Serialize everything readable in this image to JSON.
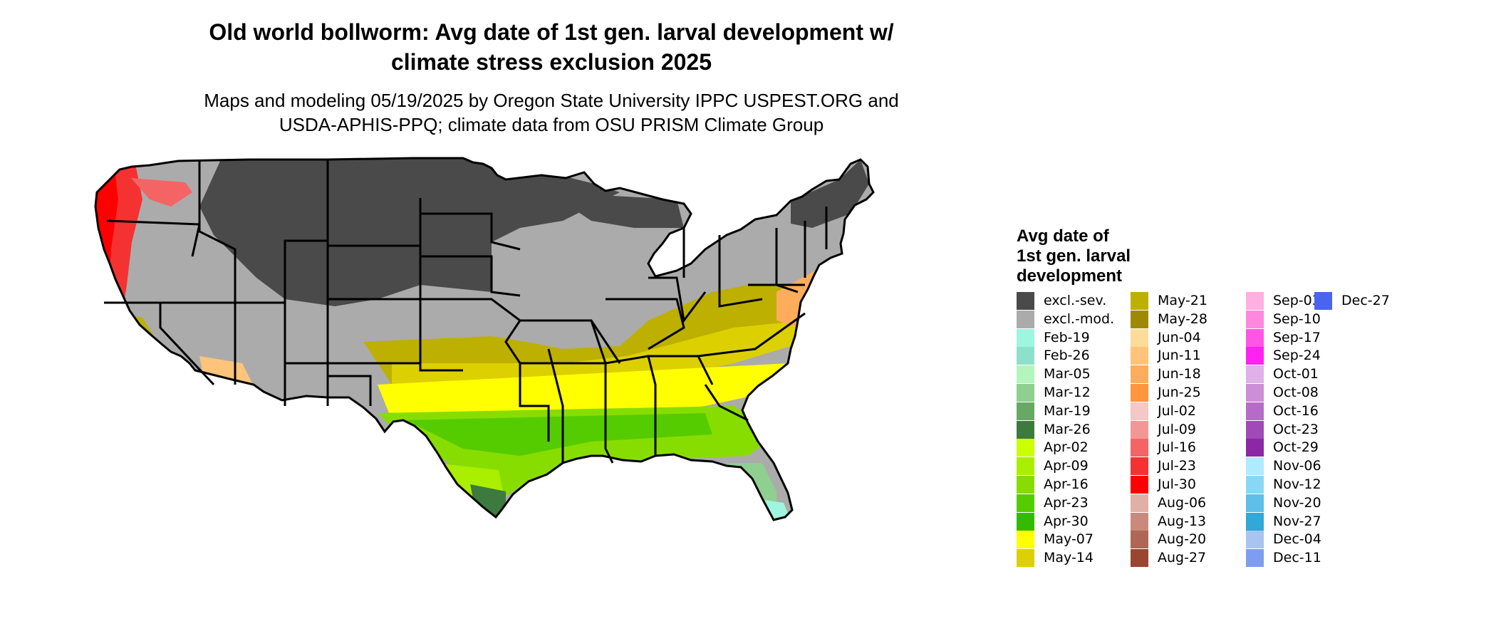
{
  "title_line1": "Old world bollworm: Avg date of 1st gen. larval development w/",
  "title_line2": "climate stress exclusion 2025",
  "subtitle_line1": "Maps and modeling 05/19/2025 by Oregon State University IPPC USPEST.ORG and",
  "subtitle_line2": "USDA-APHIS-PPQ; climate data from OSU PRISM Climate Group",
  "legend": {
    "title_line1": "Avg date of",
    "title_line2": "1st gen. larval",
    "title_line3": "development",
    "columns": [
      [
        {
          "label": "excl.-sev.",
          "color": "#4a4a4a"
        },
        {
          "label": "excl.-mod.",
          "color": "#ababab"
        },
        {
          "label": "Feb-19",
          "color": "#9ef5e0"
        },
        {
          "label": "Feb-26",
          "color": "#8de0cc"
        },
        {
          "label": "Mar-05",
          "color": "#b3f5bd"
        },
        {
          "label": "Mar-12",
          "color": "#8fcf8f"
        },
        {
          "label": "Mar-19",
          "color": "#66a866"
        },
        {
          "label": "Mar-26",
          "color": "#3d7a3d"
        },
        {
          "label": "Apr-02",
          "color": "#ccff00"
        },
        {
          "label": "Apr-09",
          "color": "#aaee00"
        },
        {
          "label": "Apr-16",
          "color": "#88dd00"
        },
        {
          "label": "Apr-23",
          "color": "#55cc00"
        },
        {
          "label": "Apr-30",
          "color": "#33bb00"
        },
        {
          "label": "May-07",
          "color": "#ffff00"
        },
        {
          "label": "May-14",
          "color": "#ddd000"
        }
      ],
      [
        {
          "label": "May-21",
          "color": "#bdb000"
        },
        {
          "label": "May-28",
          "color": "#9e8a00"
        },
        {
          "label": "Jun-04",
          "color": "#ffdb99"
        },
        {
          "label": "Jun-11",
          "color": "#ffc47a"
        },
        {
          "label": "Jun-18",
          "color": "#ffad5c"
        },
        {
          "label": "Jun-25",
          "color": "#ff963d"
        },
        {
          "label": "Jul-02",
          "color": "#f5c8c8"
        },
        {
          "label": "Jul-09",
          "color": "#f59696"
        },
        {
          "label": "Jul-16",
          "color": "#f56464"
        },
        {
          "label": "Jul-23",
          "color": "#f53232"
        },
        {
          "label": "Jul-30",
          "color": "#ff0000"
        },
        {
          "label": "Aug-06",
          "color": "#e0b0a6"
        },
        {
          "label": "Aug-13",
          "color": "#c98a7c"
        },
        {
          "label": "Aug-20",
          "color": "#b06654"
        },
        {
          "label": "Aug-27",
          "color": "#9a4432"
        }
      ],
      [
        {
          "label": "Sep-03",
          "color": "#ffb0e0"
        },
        {
          "label": "Sep-10",
          "color": "#ff88dd"
        },
        {
          "label": "Sep-17",
          "color": "#ff55e6"
        },
        {
          "label": "Sep-24",
          "color": "#ff22f0"
        },
        {
          "label": "Oct-01",
          "color": "#e0b0e8"
        },
        {
          "label": "Oct-08",
          "color": "#cc8ed6"
        },
        {
          "label": "Oct-16",
          "color": "#b66cc6"
        },
        {
          "label": "Oct-23",
          "color": "#a04ab6"
        },
        {
          "label": "Oct-29",
          "color": "#8a28a6"
        },
        {
          "label": "Nov-06",
          "color": "#b0eaff"
        },
        {
          "label": "Nov-12",
          "color": "#88d8f5"
        },
        {
          "label": "Nov-20",
          "color": "#5ebfe8"
        },
        {
          "label": "Nov-27",
          "color": "#30a8d8"
        },
        {
          "label": "Dec-04",
          "color": "#a8c4f0"
        },
        {
          "label": "Dec-11",
          "color": "#7e9cf0"
        }
      ],
      [
        {
          "label": "Dec-27",
          "color": "#4a64f0"
        }
      ]
    ]
  }
}
